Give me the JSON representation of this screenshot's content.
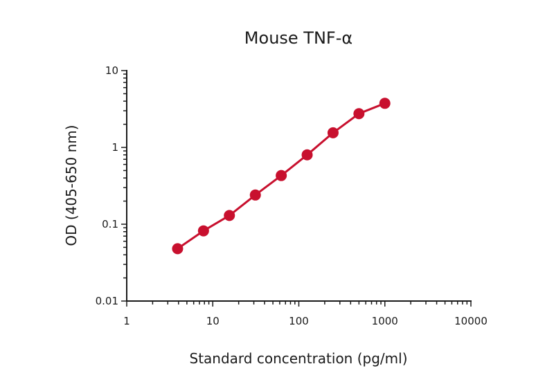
{
  "chart_data": {
    "type": "line",
    "title": "Mouse TNF-α",
    "xlabel": "Standard concentration (pg/ml)",
    "ylabel": "OD (405-650 nm)",
    "x_scale": "log",
    "y_scale": "log",
    "xlim": [
      1,
      10000
    ],
    "ylim": [
      0.01,
      10
    ],
    "x_ticks": [
      1,
      10,
      100,
      1000,
      10000
    ],
    "x_tick_labels": [
      "1",
      "10",
      "100",
      "1000",
      "10000"
    ],
    "y_ticks": [
      0.01,
      0.1,
      1,
      10
    ],
    "y_tick_labels": [
      "0.01",
      "0.1",
      "1",
      "10"
    ],
    "grid": false,
    "color": "#c8102e",
    "series": [
      {
        "x": [
          3.9,
          7.8,
          15.6,
          31.25,
          62.5,
          125,
          250,
          500,
          1000
        ],
        "y": [
          0.048,
          0.082,
          0.13,
          0.24,
          0.43,
          0.8,
          1.55,
          2.75,
          3.75
        ]
      }
    ]
  }
}
